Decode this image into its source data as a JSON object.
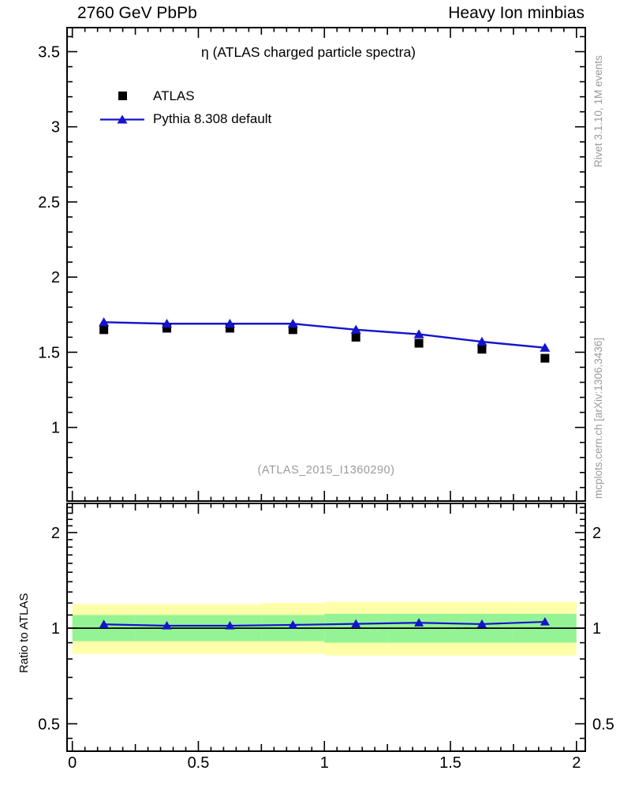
{
  "header": {
    "left_label": "2760 GeV PbPb",
    "right_label": "Heavy Ion minbias"
  },
  "plot": {
    "title": "η (ATLAS charged particle spectra)",
    "watermark": "(ATLAS_2015_I1360290)",
    "legend": [
      {
        "label": "ATLAS",
        "marker": "square",
        "color": "#000000",
        "line": false
      },
      {
        "label": "Pythia 8.308 default",
        "marker": "triangle",
        "color": "#1414cc",
        "line": true
      }
    ]
  },
  "side_notes": {
    "top_rotated": "Rivet 3.1.10,  1M events",
    "bottom_rotated": "mcplots.cern.ch [arXiv:1306.3436]"
  },
  "ratio_panel": {
    "ylabel": "Ratio to ATLAS"
  },
  "colors": {
    "accent_blue": "#1414cc",
    "marker_black": "#000000",
    "band_yellow": "#ffffaa",
    "band_green": "#94f494",
    "gray_text": "#9b9b9b",
    "frame": "#000000"
  },
  "chart_data": [
    {
      "type": "scatter",
      "panel": "main",
      "title": "η (ATLAS charged particle spectra)",
      "xlabel": "",
      "ylabel": "",
      "x": [
        0.125,
        0.375,
        0.625,
        0.875,
        1.125,
        1.375,
        1.625,
        1.875
      ],
      "series": [
        {
          "name": "ATLAS",
          "marker": "square",
          "color": "#000000",
          "line": false,
          "values": [
            1.65,
            1.66,
            1.66,
            1.65,
            1.6,
            1.56,
            1.52,
            1.46
          ]
        },
        {
          "name": "Pythia 8.308 default",
          "marker": "triangle",
          "color": "#1414cc",
          "line": true,
          "values": [
            1.7,
            1.69,
            1.69,
            1.69,
            1.65,
            1.62,
            1.57,
            1.53
          ]
        }
      ],
      "xlim": [
        0,
        2
      ],
      "ylim": [
        0.51,
        3.66
      ],
      "xticks": [
        0,
        0.5,
        1,
        1.5,
        2
      ],
      "yticks": [
        1,
        1.5,
        2,
        2.5,
        3,
        3.5
      ],
      "grid": false,
      "legend_position": "upper-left"
    },
    {
      "type": "line",
      "panel": "ratio",
      "ylabel": "Ratio to ATLAS",
      "yscale": "log",
      "x": [
        0.125,
        0.375,
        0.625,
        0.875,
        1.125,
        1.375,
        1.625,
        1.875
      ],
      "series": [
        {
          "name": "Pythia 8.308 default / ATLAS",
          "marker": "triangle",
          "color": "#1414cc",
          "line": true,
          "values": [
            1.028,
            1.018,
            1.018,
            1.024,
            1.032,
            1.04,
            1.03,
            1.047
          ]
        }
      ],
      "xlim": [
        0,
        2
      ],
      "ylim": [
        0.41,
        2.47
      ],
      "xticks": [
        0,
        0.5,
        1,
        1.5,
        2
      ],
      "yticks": [
        0.5,
        1,
        2
      ],
      "reference_line": 1,
      "bands": {
        "bin_edges": [
          0,
          0.25,
          0.5,
          0.75,
          1.0,
          1.25,
          1.5,
          1.75,
          2.0
        ],
        "yellow_lo": [
          0.83,
          0.83,
          0.83,
          0.83,
          0.82,
          0.82,
          0.82,
          0.82
        ],
        "yellow_hi": [
          1.19,
          1.19,
          1.19,
          1.2,
          1.21,
          1.21,
          1.21,
          1.21
        ],
        "green_lo": [
          0.91,
          0.91,
          0.91,
          0.91,
          0.9,
          0.9,
          0.9,
          0.9
        ],
        "green_hi": [
          1.1,
          1.1,
          1.1,
          1.1,
          1.11,
          1.11,
          1.11,
          1.11
        ]
      }
    }
  ]
}
